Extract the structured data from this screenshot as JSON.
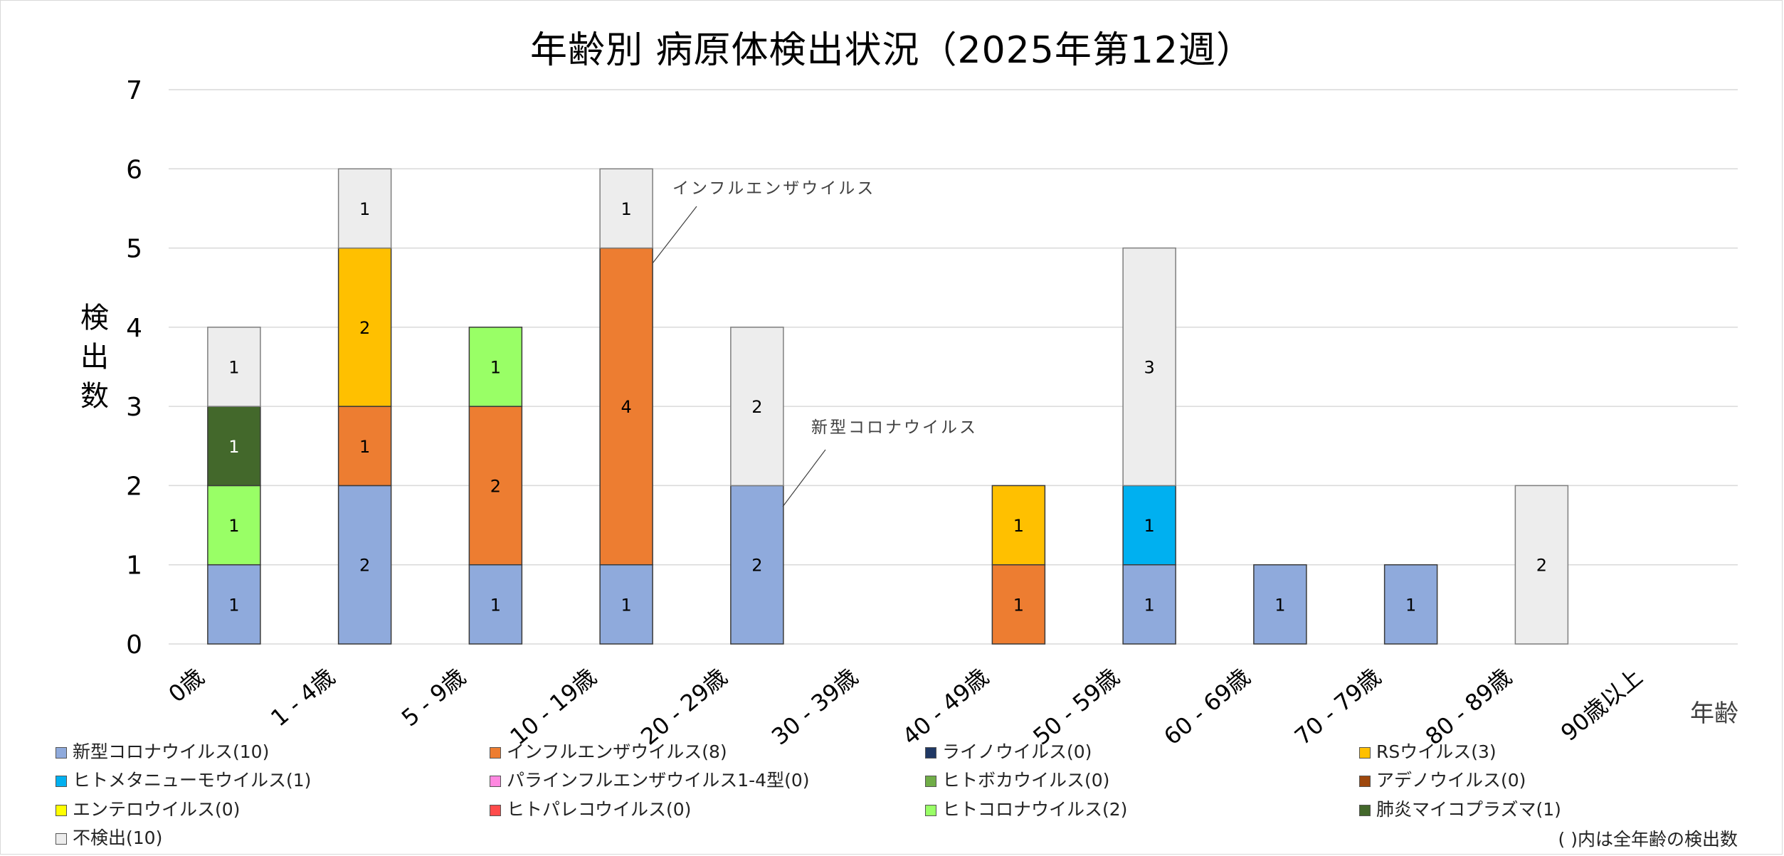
{
  "chart_data": {
    "type": "bar",
    "stacked": true,
    "title": "年齢別 病原体検出状況（2025年第12週）",
    "xlabel": "年齢",
    "ylabel": "検出数",
    "ylim": [
      0,
      7
    ],
    "yticks": [
      0,
      1,
      2,
      3,
      4,
      5,
      6,
      7
    ],
    "grid": true,
    "legend_position": "bottom",
    "categories": [
      "0歳",
      "1 - 4歳",
      "5 - 9歳",
      "10 - 19歳",
      "20 - 29歳",
      "30 - 39歳",
      "40 - 49歳",
      "50 - 59歳",
      "60 - 69歳",
      "70 - 79歳",
      "80 - 89歳",
      "90歳以上"
    ],
    "series": [
      {
        "name": "新型コロナウイルス",
        "total": 10,
        "color": "#8faadc",
        "values": [
          1,
          2,
          1,
          1,
          2,
          0,
          0,
          1,
          1,
          1,
          0,
          0
        ]
      },
      {
        "name": "インフルエンザウイルス",
        "total": 8,
        "color": "#ed7d31",
        "values": [
          0,
          1,
          2,
          4,
          0,
          0,
          1,
          0,
          0,
          0,
          0,
          0
        ]
      },
      {
        "name": "ライノウイルス",
        "total": 0,
        "color": "#203864",
        "values": [
          0,
          0,
          0,
          0,
          0,
          0,
          0,
          0,
          0,
          0,
          0,
          0
        ]
      },
      {
        "name": "RSウイルス",
        "total": 3,
        "color": "#ffc000",
        "values": [
          0,
          2,
          0,
          0,
          0,
          0,
          1,
          0,
          0,
          0,
          0,
          0
        ]
      },
      {
        "name": "ヒトメタニューモウイルス",
        "total": 1,
        "color": "#00b0f0",
        "values": [
          0,
          0,
          0,
          0,
          0,
          0,
          0,
          1,
          0,
          0,
          0,
          0
        ]
      },
      {
        "name": "パラインフルエンザウイルス1-4型",
        "total": 0,
        "color": "#ff87e0",
        "values": [
          0,
          0,
          0,
          0,
          0,
          0,
          0,
          0,
          0,
          0,
          0,
          0
        ]
      },
      {
        "name": "ヒトボカウイルス",
        "total": 0,
        "color": "#70ad47",
        "values": [
          0,
          0,
          0,
          0,
          0,
          0,
          0,
          0,
          0,
          0,
          0,
          0
        ]
      },
      {
        "name": "アデノウイルス",
        "total": 0,
        "color": "#9e480e",
        "values": [
          0,
          0,
          0,
          0,
          0,
          0,
          0,
          0,
          0,
          0,
          0,
          0
        ]
      },
      {
        "name": "エンテロウイルス",
        "total": 0,
        "color": "#ffff00",
        "values": [
          0,
          0,
          0,
          0,
          0,
          0,
          0,
          0,
          0,
          0,
          0,
          0
        ]
      },
      {
        "name": "ヒトパレコウイルス",
        "total": 0,
        "color": "#ff4b4b",
        "values": [
          0,
          0,
          0,
          0,
          0,
          0,
          0,
          0,
          0,
          0,
          0,
          0
        ]
      },
      {
        "name": "ヒトコロナウイルス",
        "total": 2,
        "color": "#99ff66",
        "values": [
          1,
          0,
          1,
          0,
          0,
          0,
          0,
          0,
          0,
          0,
          0,
          0
        ]
      },
      {
        "name": "肺炎マイコプラズマ",
        "total": 1,
        "color": "#43682b",
        "values": [
          1,
          0,
          0,
          0,
          0,
          0,
          0,
          0,
          0,
          0,
          0,
          0
        ]
      },
      {
        "name": "不検出",
        "total": 10,
        "color": "#ededed",
        "values": [
          1,
          1,
          0,
          1,
          2,
          0,
          0,
          3,
          0,
          0,
          2,
          0
        ]
      }
    ],
    "legend_labels": [
      "新型コロナウイルス(10)",
      "インフルエンザウイルス(8)",
      "ライノウイルス(0)",
      "RSウイルス(3)",
      "ヒトメタニューモウイルス(1)",
      "パラインフルエンザウイルス1-4型(0)",
      "ヒトボカウイルス(0)",
      "アデノウイルス(0)",
      "エンテロウイルス(0)",
      "ヒトパレコウイルス(0)",
      "ヒトコロナウイルス(2)",
      "肺炎マイコプラズマ(1)",
      "不検出(10)"
    ],
    "annotations": [
      {
        "text": "インフルエンザウイルス",
        "category": "10 - 19歳",
        "series": "インフルエンザウイルス"
      },
      {
        "text": "新型コロナウイルス",
        "category": "20 - 29歳",
        "series": "新型コロナウイルス"
      }
    ],
    "note": "( )内は全年齢の検出数"
  },
  "ylabel_chars": [
    "検",
    "出",
    "数"
  ]
}
